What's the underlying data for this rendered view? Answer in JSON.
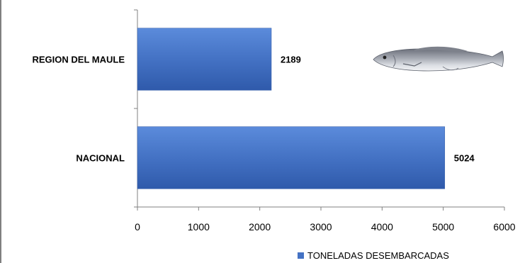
{
  "chart_data": {
    "type": "bar",
    "orientation": "horizontal",
    "categories": [
      "REGION DEL MAULE",
      "NACIONAL"
    ],
    "series": [
      {
        "name": "TONELADAS DESEMBARCADAS",
        "values": [
          2189,
          5024
        ]
      }
    ],
    "data_labels": [
      "2189",
      "5024"
    ],
    "xlim": [
      0,
      6000
    ],
    "x_ticks": [
      0,
      1000,
      2000,
      3000,
      4000,
      5000,
      6000
    ],
    "x_tick_labels": [
      "0",
      "1000",
      "2000",
      "3000",
      "4000",
      "5000",
      "6000"
    ],
    "grid": false,
    "legend_position": "bottom-right",
    "bar_color": "#4472C4",
    "bar_color_dark": "#2F5597",
    "image": "hake-fish-illustration"
  }
}
